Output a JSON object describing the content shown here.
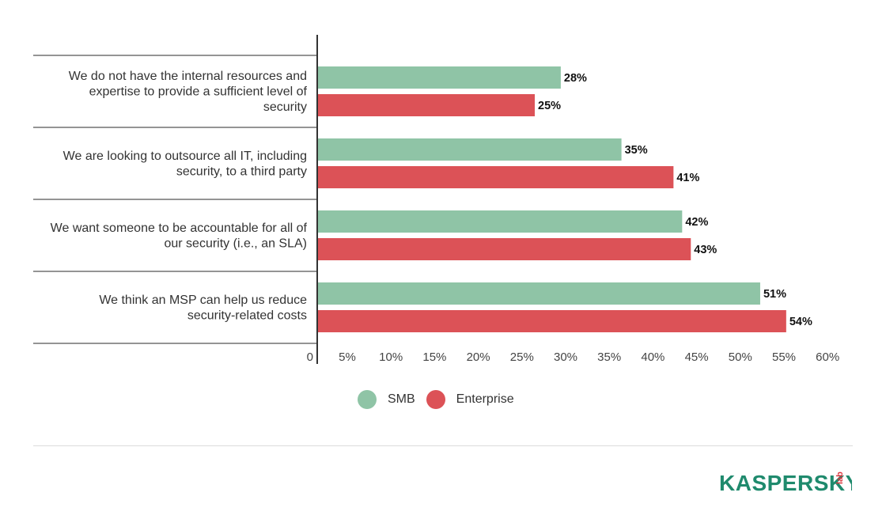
{
  "chart_data": {
    "type": "bar",
    "orientation": "horizontal",
    "categories": [
      [
        "We do not have the internal resources and",
        "expertise to provide a sufficient level of",
        "security"
      ],
      [
        "We are looking to outsource all IT, including",
        "security, to a third party"
      ],
      [
        "We want someone to be accountable for all of",
        "our security (i.e., an SLA)"
      ],
      [
        "We think an MSP can help us reduce",
        "security-related costs"
      ]
    ],
    "series": [
      {
        "name": "SMB",
        "values": [
          28,
          35,
          42,
          51
        ],
        "labels": [
          "28%",
          "35%",
          "42%",
          "51%"
        ],
        "color": "#8fc4a6"
      },
      {
        "name": "Enterprise",
        "values": [
          25,
          41,
          43,
          54
        ],
        "labels": [
          "25%",
          "41%",
          "43%",
          "54%"
        ],
        "color": "#dc5257"
      }
    ],
    "x_ticks": [
      "0",
      "5%",
      "10%",
      "15%",
      "20%",
      "25%",
      "30%",
      "35%",
      "40%",
      "45%",
      "50%",
      "55%",
      "60%"
    ],
    "xlim": [
      0,
      60
    ],
    "legend_position": "bottom",
    "grid": false
  },
  "legend": {
    "smb": "SMB",
    "enterprise": "Enterprise"
  },
  "logo": {
    "text": "KASPERSKY",
    "suffix": "lab",
    "color": "#1f8a6d",
    "accent": "#d9363e"
  }
}
